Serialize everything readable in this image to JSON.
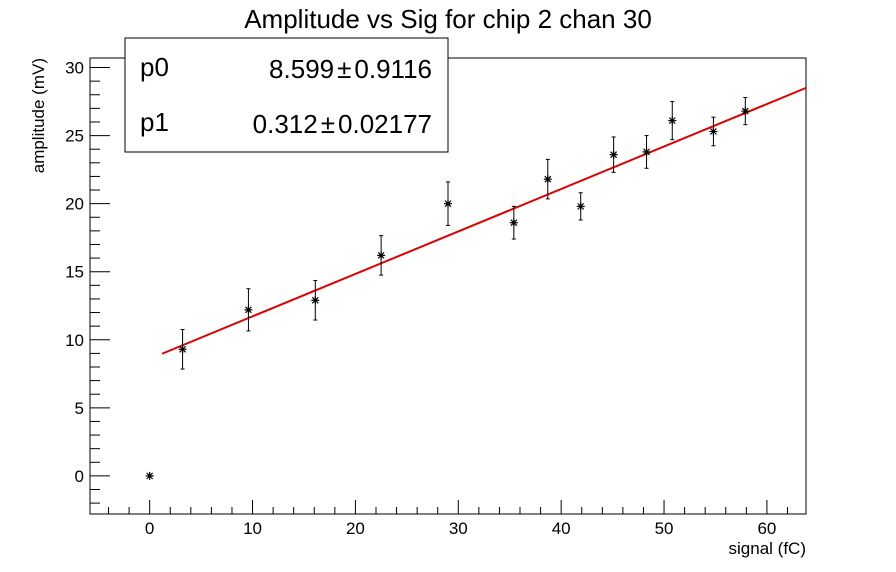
{
  "chart_data": {
    "type": "scatter",
    "title": "Amplitude vs Sig for chip 2 chan 30",
    "xlabel": "signal (fC)",
    "ylabel": "amplitude (mV)",
    "xlim": [
      -5.8,
      63.8
    ],
    "ylim": [
      -2.8,
      30.7
    ],
    "x_ticks": [
      0,
      10,
      20,
      30,
      40,
      50,
      60
    ],
    "y_ticks": [
      0,
      5,
      10,
      15,
      20,
      25,
      30
    ],
    "grid": false,
    "series": [
      {
        "points": [
          {
            "x": 0.0,
            "y": 0.0,
            "err": 0.0
          },
          {
            "x": 3.2,
            "y": 9.3,
            "err": 1.45
          },
          {
            "x": 9.6,
            "y": 12.2,
            "err": 1.55
          },
          {
            "x": 16.1,
            "y": 12.9,
            "err": 1.45
          },
          {
            "x": 22.5,
            "y": 16.2,
            "err": 1.45
          },
          {
            "x": 29.0,
            "y": 20.0,
            "err": 1.6
          },
          {
            "x": 35.4,
            "y": 18.6,
            "err": 1.2
          },
          {
            "x": 38.7,
            "y": 21.8,
            "err": 1.45
          },
          {
            "x": 41.9,
            "y": 19.8,
            "err": 1.0
          },
          {
            "x": 45.1,
            "y": 23.6,
            "err": 1.3
          },
          {
            "x": 48.3,
            "y": 23.8,
            "err": 1.2
          },
          {
            "x": 50.8,
            "y": 26.1,
            "err": 1.4
          },
          {
            "x": 54.8,
            "y": 25.3,
            "err": 1.05
          },
          {
            "x": 57.9,
            "y": 26.8,
            "err": 1.0
          }
        ],
        "color": "#000000"
      }
    ],
    "fit": {
      "p0": 8.599,
      "p1": 0.312,
      "x_range": [
        1.2,
        63.8
      ],
      "color": "#e00000"
    },
    "stats_box": {
      "position": "top-left",
      "rows": [
        {
          "name": "p0",
          "value": "8.599",
          "pm": "±",
          "error": "0.9116"
        },
        {
          "name": "p1",
          "value": "0.312",
          "pm": "±",
          "error": "0.02177"
        }
      ]
    }
  }
}
